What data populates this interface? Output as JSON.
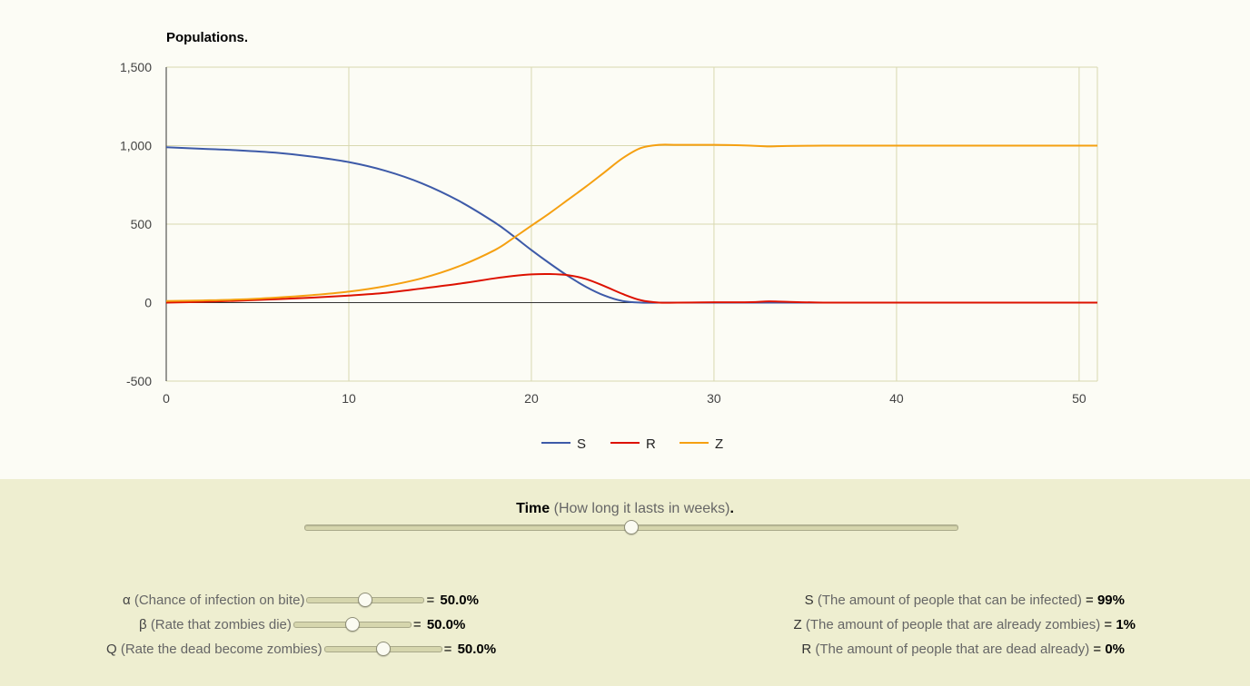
{
  "chart_data": {
    "type": "line",
    "title": "Populations.",
    "xlabel": "",
    "ylabel": "",
    "xlim": [
      0,
      51
    ],
    "ylim": [
      -500,
      1500
    ],
    "xticks": [
      0,
      10,
      20,
      30,
      40,
      50
    ],
    "yticks": [
      -500,
      0,
      500,
      1000,
      1500
    ],
    "xtick_labels": [
      "0",
      "10",
      "20",
      "30",
      "40",
      "50"
    ],
    "ytick_labels": [
      "-500",
      "0",
      "500",
      "1,000",
      "1,500"
    ],
    "grid": true,
    "legend": "bottom",
    "x": [
      0,
      2,
      4,
      6,
      8,
      10,
      12,
      14,
      16,
      18,
      19,
      20,
      21,
      22,
      23,
      24,
      25,
      26,
      27,
      28,
      30,
      32,
      33,
      34,
      36,
      38,
      40,
      42,
      44,
      46,
      48,
      50,
      51
    ],
    "series": [
      {
        "name": "S",
        "color": "#3d5aa8",
        "values": [
          990,
          980,
          970,
          955,
          930,
          895,
          840,
          760,
          650,
          510,
          425,
          335,
          250,
          170,
          100,
          45,
          10,
          0,
          0,
          0,
          0,
          0,
          0,
          0,
          0,
          0,
          0,
          0,
          0,
          0,
          0,
          0,
          0
        ]
      },
      {
        "name": "R",
        "color": "#dd1100",
        "values": [
          0,
          5,
          12,
          22,
          32,
          45,
          62,
          90,
          120,
          155,
          170,
          180,
          182,
          175,
          150,
          105,
          55,
          15,
          0,
          0,
          2,
          3,
          8,
          5,
          0,
          0,
          0,
          0,
          0,
          0,
          0,
          0,
          0
        ]
      },
      {
        "name": "Z",
        "color": "#f5a011",
        "values": [
          10,
          14,
          20,
          32,
          48,
          70,
          105,
          155,
          230,
          335,
          410,
          490,
          570,
          655,
          740,
          830,
          920,
          985,
          1005,
          1005,
          1005,
          1000,
          995,
          998,
          1000,
          1000,
          1000,
          1000,
          1000,
          1000,
          1000,
          1000,
          1000
        ]
      }
    ]
  },
  "controls": {
    "time": {
      "name": "Time",
      "desc": "(How long it lasts in weeks)",
      "end": ".",
      "fraction": 0.5
    },
    "params": [
      {
        "sym": "α",
        "desc": "(Chance of infection on bite)",
        "eq": "=",
        "value": "50.0%",
        "fraction": 0.5
      },
      {
        "sym": "β",
        "desc": "(Rate that zombies die)",
        "eq": "=",
        "value": "50.0%",
        "fraction": 0.5
      },
      {
        "sym": "Q",
        "desc": "(Rate the dead become zombies)",
        "eq": "=",
        "value": "50.0%",
        "fraction": 0.5
      }
    ],
    "info": [
      {
        "sym": "S",
        "desc": "(The amount of people that can be infected)",
        "eq": "=",
        "value": "99%"
      },
      {
        "sym": "Z",
        "desc": "(The amount of people that are already zombies)",
        "eq": "=",
        "value": "1%"
      },
      {
        "sym": "R",
        "desc": "(The amount of people that are dead already)",
        "eq": "=",
        "value": "0%"
      }
    ]
  }
}
